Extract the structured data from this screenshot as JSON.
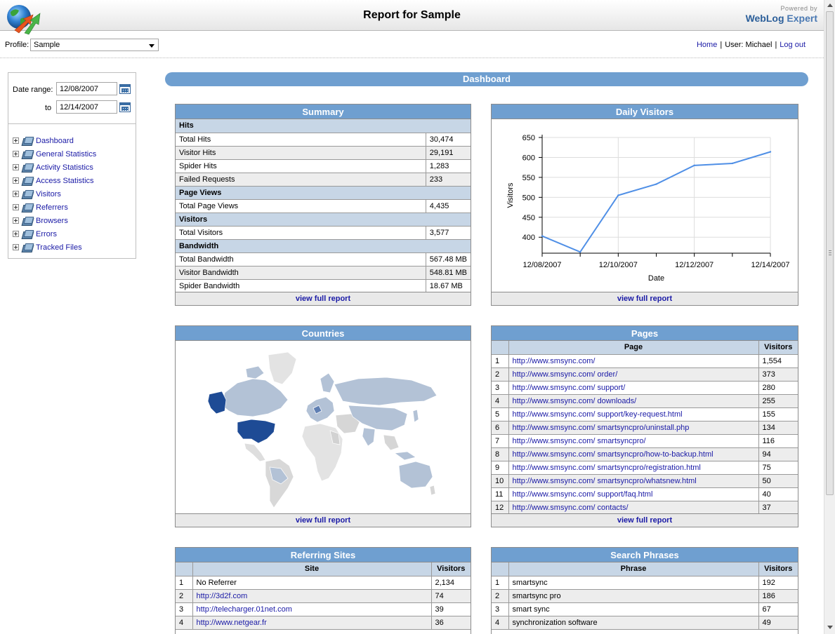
{
  "header": {
    "title": "Report for Sample",
    "powered_by": "Powered by",
    "brand_a": "WebLog",
    "brand_b": " Expert"
  },
  "profile": {
    "label": "Profile:",
    "selected": "Sample"
  },
  "user_links": {
    "home": "Home",
    "user": "User: Michael",
    "logout": "Log out"
  },
  "date_range": {
    "label": "Date range:",
    "from": "12/08/2007",
    "to_label": "to",
    "to": "12/14/2007"
  },
  "nav": [
    "Dashboard",
    "General Statistics",
    "Activity Statistics",
    "Access Statistics",
    "Visitors",
    "Referrers",
    "Browsers",
    "Errors",
    "Tracked Files"
  ],
  "dashboard_title": "Dashboard",
  "view_full_report": "view full report",
  "summary": {
    "title": "Summary",
    "sections": [
      {
        "name": "Hits",
        "rows": [
          [
            "Total Hits",
            "30,474"
          ],
          [
            "Visitor Hits",
            "29,191"
          ],
          [
            "Spider Hits",
            "1,283"
          ],
          [
            "Failed Requests",
            "233"
          ]
        ]
      },
      {
        "name": "Page Views",
        "rows": [
          [
            "Total Page Views",
            "4,435"
          ]
        ]
      },
      {
        "name": "Visitors",
        "rows": [
          [
            "Total Visitors",
            "3,577"
          ]
        ]
      },
      {
        "name": "Bandwidth",
        "rows": [
          [
            "Total Bandwidth",
            "567.48 MB"
          ],
          [
            "Visitor Bandwidth",
            "548.81 MB"
          ],
          [
            "Spider Bandwidth",
            "18.67 MB"
          ]
        ]
      }
    ]
  },
  "daily_visitors": {
    "title": "Daily Visitors"
  },
  "chart_data": {
    "type": "line",
    "title": "Daily Visitors",
    "xlabel": "Date",
    "ylabel": "Visitors",
    "x": [
      "12/08/2007",
      "12/09/2007",
      "12/10/2007",
      "12/11/2007",
      "12/12/2007",
      "12/13/2007",
      "12/14/2007"
    ],
    "x_tick_labels": [
      "12/08/2007",
      "12/10/2007",
      "12/12/2007",
      "12/14/2007"
    ],
    "series": [
      {
        "name": "Visitors",
        "values": [
          403,
          363,
          505,
          533,
          580,
          585,
          614
        ],
        "color": "#4f8fe6"
      }
    ],
    "ylim": [
      360,
      650
    ],
    "y_ticks": [
      400,
      450,
      500,
      550,
      600,
      650
    ],
    "grid": true
  },
  "countries": {
    "title": "Countries",
    "highlight_colors": [
      "#1f4e99",
      "#5f7fb3",
      "#b4c3d6",
      "#e6e6e6"
    ]
  },
  "pages": {
    "title": "Pages",
    "columns": [
      "Page",
      "Visitors"
    ],
    "rows": [
      [
        "1",
        "http://www.smsync.com/",
        "1,554"
      ],
      [
        "2",
        "http://www.smsync.com/ order/",
        "373"
      ],
      [
        "3",
        "http://www.smsync.com/ support/",
        "280"
      ],
      [
        "4",
        "http://www.smsync.com/ downloads/",
        "255"
      ],
      [
        "5",
        "http://www.smsync.com/ support/key-request.html",
        "155"
      ],
      [
        "6",
        "http://www.smsync.com/ smartsyncpro/uninstall.php",
        "134"
      ],
      [
        "7",
        "http://www.smsync.com/ smartsyncpro/",
        "116"
      ],
      [
        "8",
        "http://www.smsync.com/ smartsyncpro/how-to-backup.html",
        "94"
      ],
      [
        "9",
        "http://www.smsync.com/ smartsyncpro/registration.html",
        "75"
      ],
      [
        "10",
        "http://www.smsync.com/ smartsyncpro/whatsnew.html",
        "50"
      ],
      [
        "11",
        "http://www.smsync.com/ support/faq.html",
        "40"
      ],
      [
        "12",
        "http://www.smsync.com/ contacts/",
        "37"
      ]
    ]
  },
  "referring_sites": {
    "title": "Referring Sites",
    "columns": [
      "Site",
      "Visitors"
    ],
    "rows": [
      [
        "1",
        "No Referrer",
        "2,134",
        false
      ],
      [
        "2",
        "http://3d2f.com",
        "74",
        true
      ],
      [
        "3",
        "http://telecharger.01net.com",
        "39",
        true
      ],
      [
        "4",
        "http://www.netgear.fr",
        "36",
        true
      ]
    ]
  },
  "search_phrases": {
    "title": "Search Phrases",
    "columns": [
      "Phrase",
      "Visitors"
    ],
    "rows": [
      [
        "1",
        "smartsync",
        "192"
      ],
      [
        "2",
        "smartsync pro",
        "186"
      ],
      [
        "3",
        "smart sync",
        "67"
      ],
      [
        "4",
        "synchronization software",
        "49"
      ]
    ]
  }
}
